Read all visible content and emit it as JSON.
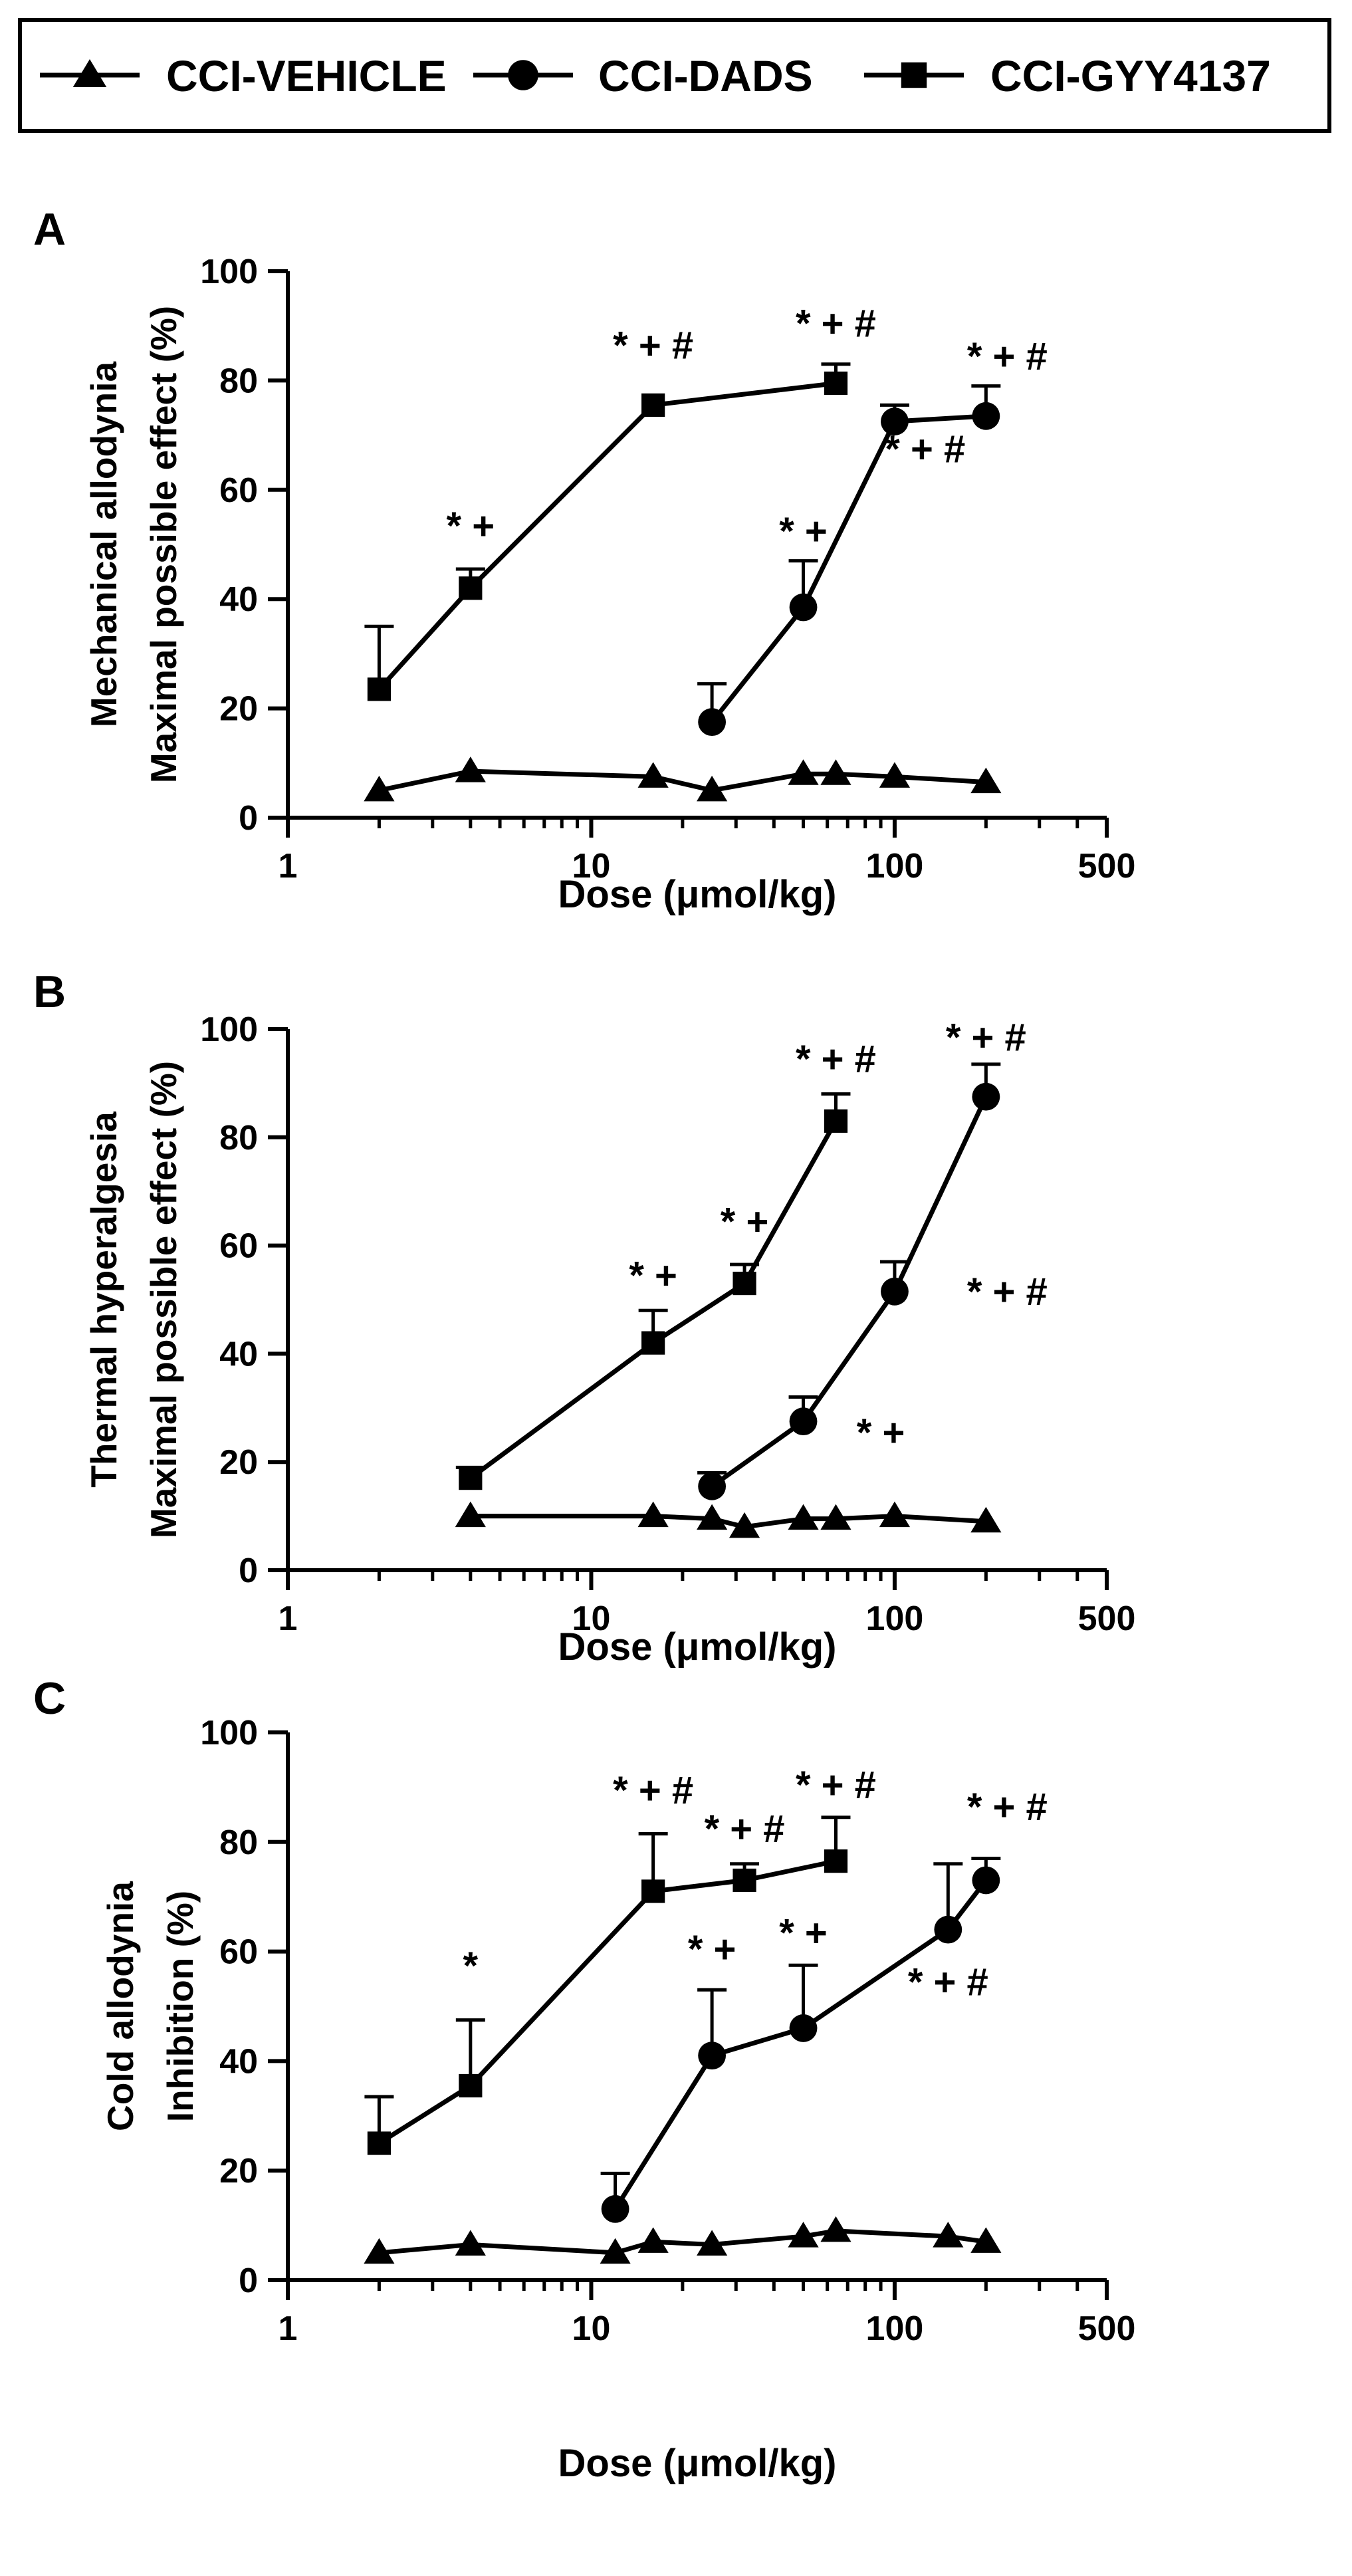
{
  "legend": {
    "entries": [
      {
        "name": "CCI-VEHICLE",
        "marker": "triangle"
      },
      {
        "name": "CCI-DADS",
        "marker": "circle"
      },
      {
        "name": "CCI-GYY4137",
        "marker": "square"
      }
    ]
  },
  "chart_data": [
    {
      "panel": "A",
      "type": "line",
      "xscale": "log",
      "xlabel": "Dose (μmol/kg)",
      "ylabel_lines": [
        "Mechanical allodynia",
        "Maximal possible effect (%)"
      ],
      "xlim": [
        1,
        500
      ],
      "ylim": [
        0,
        100
      ],
      "x_ticks": [
        1,
        10,
        100,
        500
      ],
      "x_tick_labels": [
        "1",
        "10",
        "100",
        "500"
      ],
      "y_ticks": [
        0,
        20,
        40,
        60,
        80,
        100
      ],
      "y_tick_labels": [
        "0",
        "20",
        "40",
        "60",
        "80",
        "100"
      ],
      "series": [
        {
          "name": "CCI-VEHICLE",
          "marker": "triangle",
          "x": [
            2,
            4,
            16,
            25,
            50,
            64,
            100,
            200
          ],
          "y": [
            5,
            8.5,
            7.5,
            5,
            8,
            8,
            7.5,
            6.5
          ],
          "err": [
            0,
            0,
            0,
            0,
            0,
            0,
            0,
            0
          ]
        },
        {
          "name": "CCI-DADS",
          "marker": "circle",
          "x": [
            25,
            50,
            100,
            200
          ],
          "y": [
            17.5,
            38.5,
            72.5,
            73.5
          ],
          "err": [
            7,
            8.5,
            3,
            5.5
          ]
        },
        {
          "name": "CCI-GYY4137",
          "marker": "square",
          "x": [
            2,
            4,
            16,
            64
          ],
          "y": [
            23.5,
            42,
            75.5,
            79.5
          ],
          "err": [
            11.5,
            3.5,
            0,
            3.5
          ]
        }
      ],
      "annotations": [
        {
          "text": "*+",
          "x": 4,
          "y": 51
        },
        {
          "text": "*+#",
          "x": 16,
          "y": 84
        },
        {
          "text": "*+#",
          "x": 64,
          "y": 88
        },
        {
          "text": "*+",
          "x": 50,
          "y": 50
        },
        {
          "text": "*+#",
          "x": 126,
          "y": 65
        },
        {
          "text": "*+#",
          "x": 235,
          "y": 82
        }
      ]
    },
    {
      "panel": "B",
      "type": "line",
      "xscale": "log",
      "xlabel": "Dose (μmol/kg)",
      "ylabel_lines": [
        "Thermal hyperalgesia",
        "Maximal possible effect (%)"
      ],
      "xlim": [
        1,
        500
      ],
      "ylim": [
        0,
        100
      ],
      "x_ticks": [
        1,
        10,
        100,
        500
      ],
      "x_tick_labels": [
        "1",
        "10",
        "100",
        "500"
      ],
      "y_ticks": [
        0,
        20,
        40,
        60,
        80,
        100
      ],
      "y_tick_labels": [
        "0",
        "20",
        "40",
        "60",
        "80",
        "100"
      ],
      "series": [
        {
          "name": "CCI-VEHICLE",
          "marker": "triangle",
          "x": [
            4,
            16,
            25,
            32,
            50,
            64,
            100,
            200
          ],
          "y": [
            10,
            10,
            9.5,
            8,
            9.5,
            9.5,
            10,
            9
          ],
          "err": [
            0,
            0,
            0,
            0,
            0,
            0,
            0,
            0
          ]
        },
        {
          "name": "CCI-DADS",
          "marker": "circle",
          "x": [
            25,
            50,
            100,
            200
          ],
          "y": [
            15.5,
            27.5,
            51.5,
            87.5
          ],
          "err": [
            2.5,
            4.5,
            5.5,
            6
          ]
        },
        {
          "name": "CCI-GYY4137",
          "marker": "square",
          "x": [
            4,
            16,
            32,
            64
          ],
          "y": [
            17,
            42,
            53,
            83
          ],
          "err": [
            2,
            6,
            3.5,
            5
          ]
        }
      ],
      "annotations": [
        {
          "text": "*+",
          "x": 16,
          "y": 52
        },
        {
          "text": "*+",
          "x": 32,
          "y": 62
        },
        {
          "text": "*+#",
          "x": 64,
          "y": 92
        },
        {
          "text": "*+#",
          "x": 200,
          "y": 96
        },
        {
          "text": "*+#",
          "x": 235,
          "y": 49
        },
        {
          "text": "*+",
          "x": 90,
          "y": 23
        }
      ]
    },
    {
      "panel": "C",
      "type": "line",
      "xscale": "log",
      "xlabel": "Dose (μmol/kg)",
      "ylabel_lines": [
        "Cold allodynia",
        "Inhibition (%)"
      ],
      "xlim": [
        1,
        500
      ],
      "ylim": [
        0,
        100
      ],
      "x_ticks": [
        1,
        10,
        100,
        500
      ],
      "x_tick_labels": [
        "1",
        "10",
        "100",
        "500"
      ],
      "y_ticks": [
        0,
        20,
        40,
        60,
        80,
        100
      ],
      "y_tick_labels": [
        "0",
        "20",
        "40",
        "60",
        "80",
        "100"
      ],
      "series": [
        {
          "name": "CCI-VEHICLE",
          "marker": "triangle",
          "x": [
            2,
            4,
            12,
            16,
            25,
            50,
            64,
            150,
            200
          ],
          "y": [
            5,
            6.5,
            5,
            7,
            6.5,
            8,
            9,
            8,
            7
          ],
          "err": [
            0,
            0,
            0,
            0,
            0,
            0,
            0,
            0,
            0
          ]
        },
        {
          "name": "CCI-DADS",
          "marker": "circle",
          "x": [
            12,
            25,
            50,
            150,
            200
          ],
          "y": [
            13,
            41,
            46,
            64,
            73
          ],
          "err": [
            6.5,
            12,
            11.5,
            12,
            4
          ]
        },
        {
          "name": "CCI-GYY4137",
          "marker": "square",
          "x": [
            2,
            4,
            16,
            32,
            64
          ],
          "y": [
            25,
            35.5,
            71,
            73,
            76.5
          ],
          "err": [
            8.5,
            12,
            10.5,
            3,
            8
          ]
        }
      ],
      "annotations": [
        {
          "text": "*",
          "x": 4,
          "y": 55
        },
        {
          "text": "*+#",
          "x": 16,
          "y": 87
        },
        {
          "text": "*+#",
          "x": 32,
          "y": 80
        },
        {
          "text": "*+#",
          "x": 64,
          "y": 88
        },
        {
          "text": "*+",
          "x": 25,
          "y": 58
        },
        {
          "text": "*+",
          "x": 50,
          "y": 61
        },
        {
          "text": "*+#",
          "x": 150,
          "y": 52
        },
        {
          "text": "*+#",
          "x": 235,
          "y": 84
        }
      ]
    }
  ]
}
